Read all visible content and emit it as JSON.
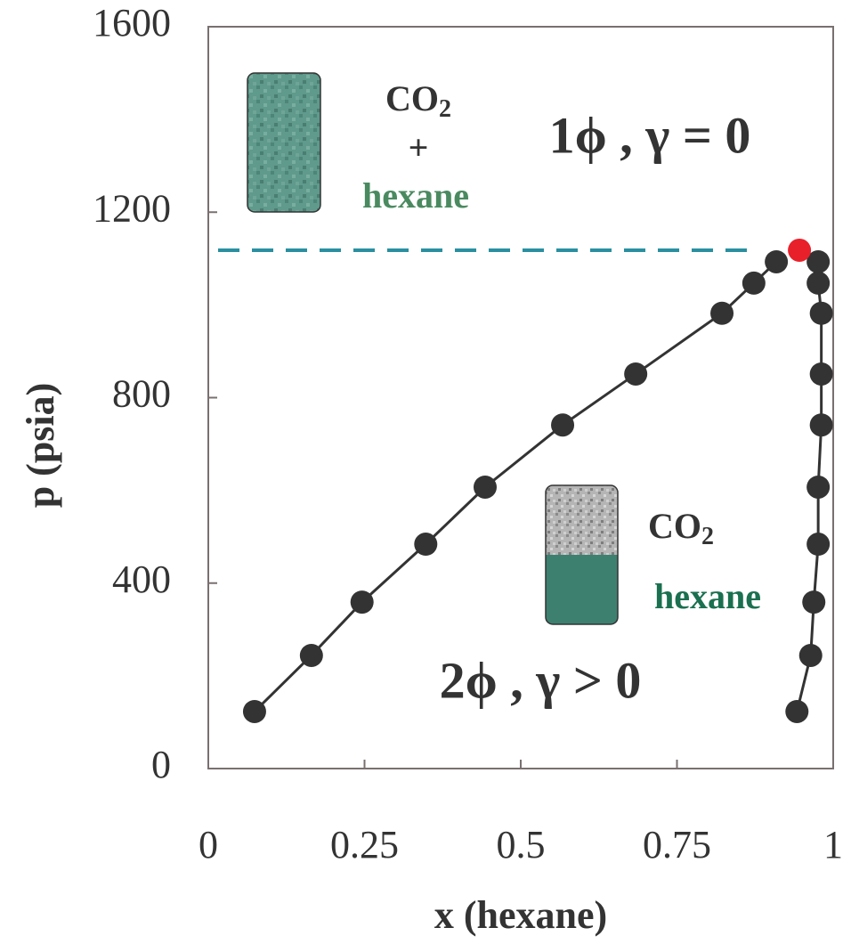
{
  "chart_data": {
    "type": "scatter",
    "x_label": "x (hexane)",
    "y_label": "p (psia)",
    "xlim": [
      0,
      1
    ],
    "xticks": [
      0,
      {
        "value": 0.25,
        "label": "0.25"
      },
      {
        "value": 0.5,
        "label": "0.5"
      },
      {
        "value": 0.75,
        "label": "0.75"
      },
      1
    ],
    "ylim": [
      0,
      1600
    ],
    "yticks": [
      0,
      400,
      800,
      1200,
      1600
    ],
    "series": [
      {
        "color": "#333333",
        "x": [
          0.074,
          0.165,
          0.246,
          0.348,
          0.443,
          0.567,
          0.684,
          0.822,
          0.873,
          0.909
        ],
        "values": [
          123,
          244,
          359,
          484,
          607,
          741,
          851,
          982,
          1047,
          1093
        ]
      },
      {
        "color": "#333333",
        "x": [
          0.942,
          0.964,
          0.969,
          0.976,
          0.976,
          0.981,
          0.981,
          0.981,
          0.976,
          0.976
        ],
        "values": [
          123,
          244,
          359,
          484,
          607,
          741,
          851,
          982,
          1047,
          1093
        ]
      }
    ],
    "critical_point": {
      "x": 0.946,
      "y": 1118,
      "color": "#e8202a"
    },
    "critical_pressure_line": {
      "y": 1118,
      "color": "#2a8fa0"
    },
    "annotations": {
      "upper_mix": {
        "formula": "CO",
        "subscript": "2",
        "plus": "+",
        "label": "hexane"
      },
      "one_phase": "1ϕ , γ = 0",
      "lower_mix": {
        "formula": "CO",
        "subscript": "2",
        "label": "hexane"
      },
      "two_phase": "2ϕ , γ > 0"
    }
  }
}
